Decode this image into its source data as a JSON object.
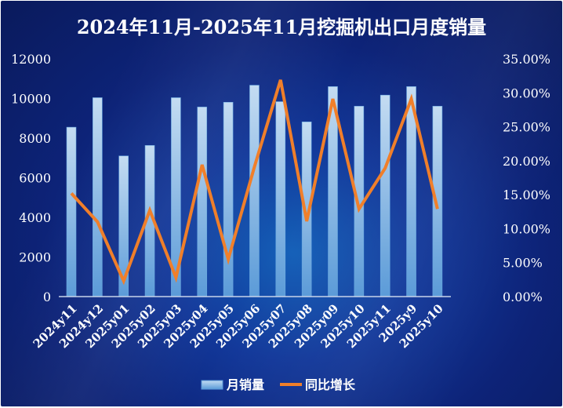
{
  "chart_data": {
    "type": "bar+line",
    "title": "2024年11月-2025年11月挖掘机出口月度销量",
    "categories": [
      "2024y11",
      "2024y12",
      "2025y01",
      "2025y02",
      "2025y03",
      "2025y04",
      "2025y05",
      "2025y06",
      "2025y07",
      "2025y08",
      "2025y09",
      "2025y10",
      "2025y11",
      "2025y9",
      "2025y10"
    ],
    "series": [
      {
        "name": "月销量",
        "type": "bar",
        "axis": "left",
        "color": "#9cc8ec",
        "values": [
          8550,
          10040,
          7100,
          7630,
          10040,
          9570,
          9810,
          10670,
          9840,
          8820,
          10600,
          9610,
          10170,
          10600,
          9610
        ]
      },
      {
        "name": "同比增长",
        "type": "line",
        "axis": "right",
        "color": "#f07f2a",
        "values": [
          15.2,
          11.0,
          2.3,
          12.7,
          2.8,
          19.4,
          5.5,
          19.1,
          31.9,
          11.1,
          29.1,
          12.9,
          18.9,
          29.1,
          12.9
        ]
      }
    ],
    "y_left": {
      "ylim": [
        0,
        12000
      ],
      "ticks": [
        "0",
        "2000",
        "4000",
        "6000",
        "8000",
        "10000",
        "12000"
      ]
    },
    "y_right": {
      "ylim": [
        0,
        35
      ],
      "ticks": [
        "0.00%",
        "5.00%",
        "10.00%",
        "15.00%",
        "20.00%",
        "25.00%",
        "30.00%",
        "35.00%"
      ]
    },
    "grid": false,
    "legend": "bottom"
  }
}
